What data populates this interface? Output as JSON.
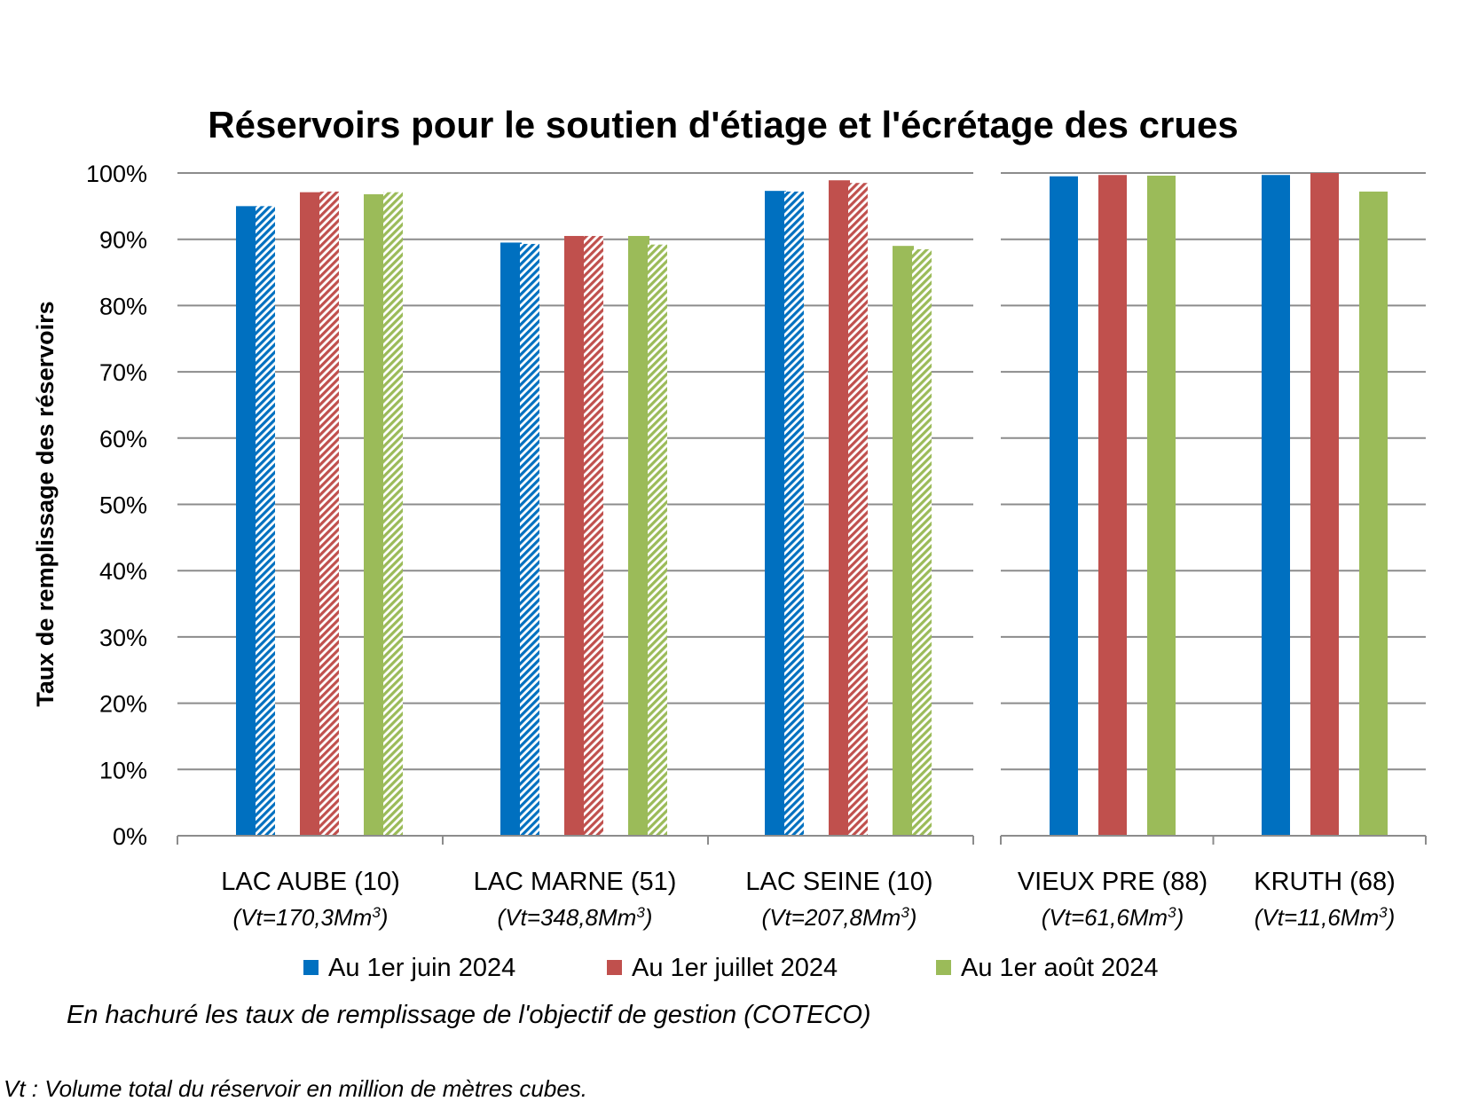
{
  "chart_data": {
    "type": "bar",
    "title": "Réservoirs pour le soutien d'étiage et l'écrétage des crues",
    "ylabel": "Taux de remplissage des réservoirs",
    "ylim": [
      0,
      100
    ],
    "y_ticks": [
      "0%",
      "10%",
      "20%",
      "30%",
      "40%",
      "50%",
      "60%",
      "70%",
      "80%",
      "90%",
      "100%"
    ],
    "grid": true,
    "legend_position": "bottom",
    "colors": {
      "juin": "#0070C0",
      "juillet": "#C0504D",
      "aout": "#9BBB59"
    },
    "series": [
      {
        "name": "Au 1er juin 2024",
        "key": "juin"
      },
      {
        "name": "Au 1er juillet 2024",
        "key": "juillet"
      },
      {
        "name": "Au 1er août 2024",
        "key": "aout"
      }
    ],
    "panels": [
      {
        "categories": [
          {
            "label": "LAC AUBE (10)",
            "volume": "(Vt=170,3Mm",
            "volume_unit_sup": "3",
            "volume_end": ")",
            "values": [
              95.0,
              97.1,
              96.8
            ],
            "objective": [
              95.0,
              97.2,
              97.1
            ]
          },
          {
            "label": "LAC MARNE (51)",
            "volume": "(Vt=348,8Mm",
            "volume_unit_sup": "3",
            "volume_end": ")",
            "values": [
              89.5,
              90.5,
              90.5
            ],
            "objective": [
              89.3,
              90.5,
              89.2
            ]
          },
          {
            "label": "LAC SEINE (10)",
            "volume": "(Vt=207,8Mm",
            "volume_unit_sup": "3",
            "volume_end": ")",
            "values": [
              97.3,
              98.9,
              89.0
            ],
            "objective": [
              97.2,
              98.5,
              88.5
            ]
          }
        ]
      },
      {
        "categories": [
          {
            "label": "VIEUX PRE (88)",
            "volume": "(Vt=61,6Mm",
            "volume_unit_sup": "3",
            "volume_end": ")",
            "values": [
              99.5,
              99.7,
              99.6
            ]
          },
          {
            "label": "KRUTH (68)",
            "volume": "(Vt=11,6Mm",
            "volume_unit_sup": "3",
            "volume_end": ")",
            "values": [
              99.7,
              100.0,
              97.2
            ]
          }
        ]
      }
    ]
  },
  "notes": {
    "hatch": "En hachuré les taux de remplissage de l'objectif de gestion (COTECO)",
    "vt": "Vt : Volume total du réservoir en million de mètres cubes."
  }
}
